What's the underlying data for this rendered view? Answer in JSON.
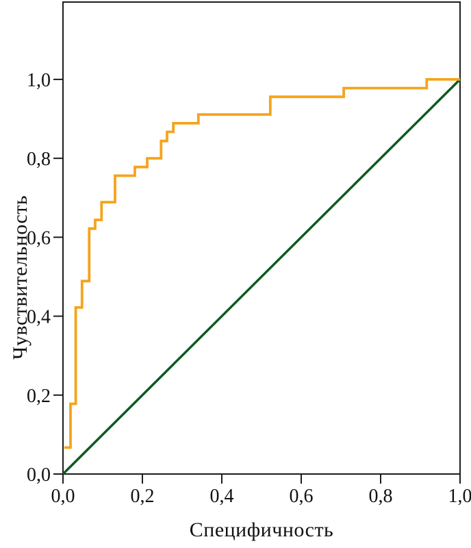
{
  "chart_data": {
    "type": "line",
    "subtype": "roc-curve",
    "title": "",
    "xlabel": "Специфичность",
    "ylabel": "Чувствительность",
    "xlim": [
      0,
      1.0
    ],
    "ylim": [
      0,
      1.196
    ],
    "grid": false,
    "legend": "none",
    "background_color": "#FFFFFF",
    "axis_color": "#1C1C1C",
    "text_color": "#121212",
    "x_ticks": {
      "values": [
        0,
        0.2,
        0.4,
        0.6,
        0.8,
        1.0
      ],
      "labels": [
        "0,0",
        "0,2",
        "0,4",
        "0,6",
        "0,8",
        "1,0"
      ]
    },
    "y_ticks": {
      "values": [
        0,
        0.2,
        0.4,
        0.6,
        0.8,
        1.0
      ],
      "labels": [
        "0,0",
        "0,2",
        "0,4",
        "0,6",
        "0,8",
        "1,0"
      ]
    },
    "series": [
      {
        "name": "roc-curve",
        "color": "#F5A41D",
        "line_width": 3.8,
        "points": [
          [
            0.003,
            0.067
          ],
          [
            0.019,
            0.067
          ],
          [
            0.019,
            0.178
          ],
          [
            0.032,
            0.178
          ],
          [
            0.032,
            0.422
          ],
          [
            0.048,
            0.422
          ],
          [
            0.048,
            0.489
          ],
          [
            0.066,
            0.489
          ],
          [
            0.066,
            0.622
          ],
          [
            0.081,
            0.622
          ],
          [
            0.081,
            0.644
          ],
          [
            0.097,
            0.644
          ],
          [
            0.097,
            0.689
          ],
          [
            0.131,
            0.689
          ],
          [
            0.131,
            0.756
          ],
          [
            0.181,
            0.756
          ],
          [
            0.181,
            0.778
          ],
          [
            0.212,
            0.778
          ],
          [
            0.212,
            0.8
          ],
          [
            0.247,
            0.8
          ],
          [
            0.247,
            0.844
          ],
          [
            0.262,
            0.844
          ],
          [
            0.262,
            0.867
          ],
          [
            0.278,
            0.867
          ],
          [
            0.278,
            0.889
          ],
          [
            0.341,
            0.889
          ],
          [
            0.341,
            0.911
          ],
          [
            0.522,
            0.911
          ],
          [
            0.522,
            0.956
          ],
          [
            0.707,
            0.956
          ],
          [
            0.707,
            0.978
          ],
          [
            0.916,
            0.978
          ],
          [
            0.916,
            1.0
          ],
          [
            1.0,
            1.0
          ]
        ]
      },
      {
        "name": "chance-diagonal",
        "color": "#0D5A1E",
        "line_width": 3.5,
        "points": [
          [
            0,
            0
          ],
          [
            1.0,
            1.0
          ]
        ]
      }
    ]
  }
}
